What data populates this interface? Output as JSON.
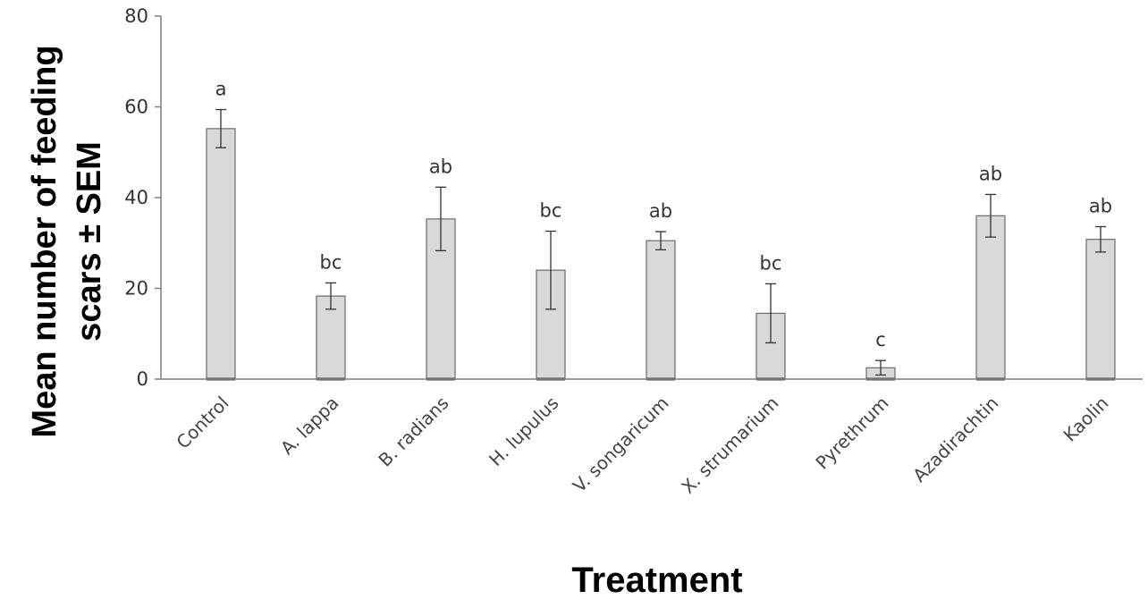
{
  "chart_data": {
    "type": "bar",
    "title": "",
    "xlabel": "Treatment",
    "ylabel_lines": [
      "Mean number of feeding",
      "scars ± SEM"
    ],
    "ylim": [
      0,
      80
    ],
    "yticks": [
      0,
      20,
      40,
      60,
      80
    ],
    "grid": false,
    "legend": "none",
    "categories": [
      "Control",
      "A. lappa",
      "B. radians",
      "H. lupulus",
      "V. songaricum",
      "X. strumarium",
      "Pyrethrum",
      "Azadirachtin",
      "Kaolin"
    ],
    "values": [
      55.2,
      18.3,
      35.3,
      24.0,
      30.5,
      14.5,
      2.5,
      36.0,
      30.8
    ],
    "errors": [
      4.2,
      2.9,
      7.0,
      8.6,
      2.0,
      6.5,
      1.6,
      4.7,
      2.8
    ],
    "significance_labels": [
      "a",
      "bc",
      "ab",
      "bc",
      "ab",
      "bc",
      "c",
      "ab",
      "ab"
    ],
    "colors": {
      "bar_fill": "#d9d9d9",
      "bar_stroke": "#6b6b6b",
      "axis": "#7f7f7f",
      "error_bar": "#333333"
    }
  }
}
